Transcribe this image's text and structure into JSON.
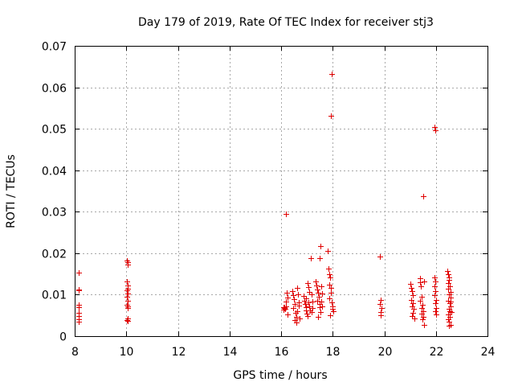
{
  "chart_data": {
    "type": "scatter",
    "title": "Day 179 of 2019, Rate Of TEC Index for receiver stj3",
    "xlabel": "GPS time / hours",
    "ylabel": "ROTI / TECUs",
    "xlim": [
      8,
      24
    ],
    "ylim": [
      0,
      0.07
    ],
    "x_ticks": [
      8,
      10,
      12,
      14,
      16,
      18,
      20,
      22,
      24
    ],
    "y_ticks": [
      0,
      0.01,
      0.02,
      0.03,
      0.04,
      0.05,
      0.06,
      0.07
    ],
    "x_tick_labels": [
      "8",
      "10",
      "12",
      "14",
      "16",
      "18",
      "20",
      "22",
      "24"
    ],
    "y_tick_labels": [
      "0",
      "0.01",
      "0.02",
      "0.03",
      "0.04",
      "0.05",
      "0.06",
      "0.07"
    ],
    "grid": true,
    "marker": "plus",
    "marker_color": "#e00000",
    "series": [
      {
        "name": "ROTI",
        "points": [
          [
            8.15,
            0.0153
          ],
          [
            8.15,
            0.0113
          ],
          [
            8.15,
            0.011
          ],
          [
            8.15,
            0.0075
          ],
          [
            8.15,
            0.0069
          ],
          [
            8.15,
            0.0056
          ],
          [
            8.15,
            0.0049
          ],
          [
            8.15,
            0.004
          ],
          [
            8.15,
            0.0034
          ],
          [
            10.02,
            0.0183
          ],
          [
            10.05,
            0.0178
          ],
          [
            10.04,
            0.0172
          ],
          [
            10.03,
            0.0132
          ],
          [
            10.05,
            0.0122
          ],
          [
            10.04,
            0.0115
          ],
          [
            10.02,
            0.0111
          ],
          [
            10.06,
            0.0103
          ],
          [
            10.03,
            0.0095
          ],
          [
            10.05,
            0.0086
          ],
          [
            10.02,
            0.0075
          ],
          [
            10.06,
            0.0072
          ],
          [
            10.04,
            0.0068
          ],
          [
            10.05,
            0.0043
          ],
          [
            10.03,
            0.0039
          ],
          [
            10.06,
            0.0036
          ],
          [
            16.08,
            0.007
          ],
          [
            16.12,
            0.0068
          ],
          [
            16.15,
            0.0066
          ],
          [
            16.18,
            0.0071
          ],
          [
            16.1,
            0.0064
          ],
          [
            16.14,
            0.0069
          ],
          [
            16.2,
            0.0295
          ],
          [
            16.22,
            0.0104
          ],
          [
            16.24,
            0.0094
          ],
          [
            16.18,
            0.0083
          ],
          [
            16.25,
            0.0052
          ],
          [
            16.45,
            0.0109
          ],
          [
            16.48,
            0.0098
          ],
          [
            16.5,
            0.0089
          ],
          [
            16.52,
            0.0078
          ],
          [
            16.47,
            0.0067
          ],
          [
            16.55,
            0.0056
          ],
          [
            16.58,
            0.0047
          ],
          [
            16.53,
            0.0039
          ],
          [
            16.6,
            0.0033
          ],
          [
            16.62,
            0.0116
          ],
          [
            16.65,
            0.0101
          ],
          [
            16.68,
            0.0082
          ],
          [
            16.7,
            0.0073
          ],
          [
            16.63,
            0.0061
          ],
          [
            16.72,
            0.0043
          ],
          [
            16.88,
            0.0096
          ],
          [
            16.9,
            0.0086
          ],
          [
            16.92,
            0.0078
          ],
          [
            16.95,
            0.0069
          ],
          [
            16.97,
            0.0062
          ],
          [
            17.0,
            0.0054
          ],
          [
            17.02,
            0.0049
          ],
          [
            17.04,
            0.0128
          ],
          [
            17.06,
            0.0118
          ],
          [
            17.08,
            0.0107
          ],
          [
            16.98,
            0.0091
          ],
          [
            17.05,
            0.0081
          ],
          [
            17.1,
            0.0072
          ],
          [
            17.12,
            0.0063
          ],
          [
            17.15,
            0.0188
          ],
          [
            17.18,
            0.0101
          ],
          [
            17.2,
            0.0083
          ],
          [
            17.22,
            0.0068
          ],
          [
            17.18,
            0.0059
          ],
          [
            17.35,
            0.0131
          ],
          [
            17.38,
            0.0123
          ],
          [
            17.4,
            0.0112
          ],
          [
            17.42,
            0.0104
          ],
          [
            17.45,
            0.0095
          ],
          [
            17.4,
            0.0086
          ],
          [
            17.48,
            0.0078
          ],
          [
            17.5,
            0.0069
          ],
          [
            17.52,
            0.0058
          ],
          [
            17.44,
            0.0047
          ],
          [
            17.52,
            0.0217
          ],
          [
            17.5,
            0.0189
          ],
          [
            17.55,
            0.0121
          ],
          [
            17.58,
            0.0102
          ],
          [
            17.56,
            0.0084
          ],
          [
            17.6,
            0.0071
          ],
          [
            17.82,
            0.0205
          ],
          [
            17.85,
            0.0163
          ],
          [
            17.88,
            0.0149
          ],
          [
            17.9,
            0.0141
          ],
          [
            17.86,
            0.0125
          ],
          [
            17.92,
            0.0116
          ],
          [
            17.94,
            0.0104
          ],
          [
            17.88,
            0.0091
          ],
          [
            17.96,
            0.0082
          ],
          [
            17.98,
            0.0072
          ],
          [
            18.0,
            0.0066
          ],
          [
            18.02,
            0.0061
          ],
          [
            17.9,
            0.0051
          ],
          [
            17.95,
            0.0632
          ],
          [
            17.93,
            0.0531
          ],
          [
            19.83,
            0.0192
          ],
          [
            19.86,
            0.0087
          ],
          [
            19.84,
            0.0077
          ],
          [
            19.88,
            0.0067
          ],
          [
            19.85,
            0.0058
          ],
          [
            19.87,
            0.005
          ],
          [
            21.02,
            0.0126
          ],
          [
            21.05,
            0.0116
          ],
          [
            21.08,
            0.0108
          ],
          [
            21.1,
            0.0098
          ],
          [
            21.04,
            0.0088
          ],
          [
            21.12,
            0.008
          ],
          [
            21.06,
            0.0072
          ],
          [
            21.14,
            0.0065
          ],
          [
            21.1,
            0.0057
          ],
          [
            21.08,
            0.0049
          ],
          [
            21.16,
            0.0042
          ],
          [
            21.38,
            0.0139
          ],
          [
            21.4,
            0.0129
          ],
          [
            21.42,
            0.0121
          ],
          [
            21.45,
            0.0095
          ],
          [
            21.4,
            0.0085
          ],
          [
            21.48,
            0.0076
          ],
          [
            21.44,
            0.0068
          ],
          [
            21.5,
            0.0061
          ],
          [
            21.46,
            0.0054
          ],
          [
            21.52,
            0.0047
          ],
          [
            21.48,
            0.004
          ],
          [
            21.55,
            0.0027
          ],
          [
            21.52,
            0.0338
          ],
          [
            21.54,
            0.0131
          ],
          [
            21.95,
            0.0505
          ],
          [
            21.97,
            0.0497
          ],
          [
            21.96,
            0.0142
          ],
          [
            21.98,
            0.0131
          ],
          [
            21.95,
            0.0121
          ],
          [
            21.99,
            0.0109
          ],
          [
            21.96,
            0.0098
          ],
          [
            22.0,
            0.0088
          ],
          [
            21.97,
            0.0079
          ],
          [
            22.01,
            0.0068
          ],
          [
            21.98,
            0.006
          ],
          [
            22.0,
            0.0053
          ],
          [
            22.45,
            0.0158
          ],
          [
            22.48,
            0.015
          ],
          [
            22.5,
            0.0142
          ],
          [
            22.52,
            0.0135
          ],
          [
            22.46,
            0.0128
          ],
          [
            22.55,
            0.0121
          ],
          [
            22.49,
            0.0114
          ],
          [
            22.57,
            0.0107
          ],
          [
            22.51,
            0.01
          ],
          [
            22.58,
            0.0093
          ],
          [
            22.47,
            0.0086
          ],
          [
            22.53,
            0.0079
          ],
          [
            22.56,
            0.0072
          ],
          [
            22.5,
            0.0065
          ],
          [
            22.59,
            0.0058
          ],
          [
            22.46,
            0.0052
          ],
          [
            22.54,
            0.0046
          ],
          [
            22.48,
            0.004
          ],
          [
            22.52,
            0.0034
          ],
          [
            22.56,
            0.0028
          ],
          [
            22.5,
            0.0025
          ],
          [
            22.58,
            0.0083
          ],
          [
            22.55,
            0.0061
          ]
        ]
      }
    ]
  }
}
